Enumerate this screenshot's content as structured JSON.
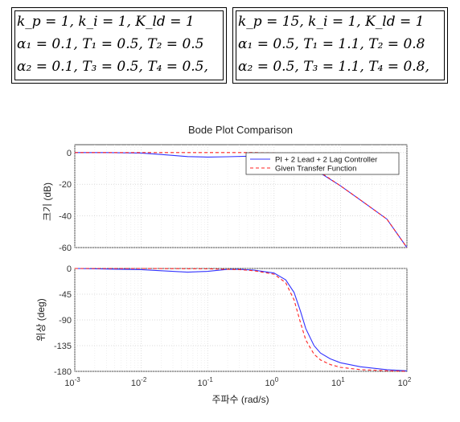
{
  "param_boxes": [
    {
      "lines": [
        "k_p = 1, k_i = 1, K_ld = 1",
        "α₁ = 0.1, T₁ = 0.5, T₂ = 0.5",
        "α₂ = 0.1, T₃ = 0.5, T₄ = 0.5,"
      ]
    },
    {
      "lines": [
        "k_p = 15, k_i = 1, K_ld = 1",
        "α₁ = 0.5, T₁ = 1.1, T₂ = 0.8",
        "α₂ = 0.5, T₃ = 1.1, T₄ = 0.8,"
      ]
    }
  ],
  "chart_data": [
    {
      "type": "line",
      "title": "Bode Plot Comparison",
      "xlabel": "",
      "ylabel": "크기 (dB)",
      "xscale": "log",
      "xlim": [
        0.001,
        100
      ],
      "ylim": [
        -60,
        5
      ],
      "yticks": [
        0,
        -20,
        -40,
        -60
      ],
      "grid": true,
      "legend_placement": "top-right",
      "series": [
        {
          "name": "PI + 2 Lead + 2 Lag Controller",
          "color": "#3333ff",
          "style": "solid",
          "x": [
            0.001,
            0.003,
            0.01,
            0.02,
            0.05,
            0.1,
            0.2,
            0.5,
            1,
            2,
            3,
            5,
            10,
            20,
            50,
            100
          ],
          "y": [
            0,
            0,
            -0.3,
            -1.2,
            -2.5,
            -2.8,
            -2.6,
            -2.2,
            -2.5,
            -4.5,
            -7.5,
            -13,
            -21,
            -30,
            -42,
            -60
          ]
        },
        {
          "name": "Given Transfer Function",
          "color": "#ff2222",
          "style": "dashed",
          "x": [
            0.001,
            0.01,
            0.1,
            0.5,
            1,
            2,
            3,
            5,
            10,
            20,
            50,
            100
          ],
          "y": [
            0,
            0,
            0,
            0,
            -0.3,
            -2.5,
            -6.5,
            -12.5,
            -21,
            -30,
            -42,
            -60
          ]
        }
      ]
    },
    {
      "type": "line",
      "title": "",
      "xlabel": "주파수 (rad/s)",
      "ylabel": "위상 (deg)",
      "xscale": "log",
      "xlim": [
        0.001,
        100
      ],
      "ylim": [
        -180,
        0
      ],
      "xticks": [
        0.001,
        0.01,
        0.1,
        1,
        10,
        100
      ],
      "xtick_labels": [
        [
          "10",
          "-3"
        ],
        [
          "10",
          "-2"
        ],
        [
          "10",
          "-1"
        ],
        [
          "10",
          "0"
        ],
        [
          "10",
          "1"
        ],
        [
          "10",
          "2"
        ]
      ],
      "yticks": [
        0,
        -45,
        -90,
        -135,
        -180
      ],
      "grid": true,
      "series": [
        {
          "name": "PI + 2 Lead + 2 Lag Controller",
          "color": "#3333ff",
          "style": "solid",
          "x": [
            0.001,
            0.003,
            0.01,
            0.02,
            0.05,
            0.1,
            0.2,
            0.3,
            0.5,
            1,
            1.5,
            2,
            2.5,
            3,
            4,
            5,
            7,
            10,
            20,
            50,
            100
          ],
          "y": [
            0,
            -1,
            -2,
            -4,
            -6.5,
            -5,
            -1.5,
            -1.5,
            -3,
            -8,
            -20,
            -42,
            -75,
            -105,
            -135,
            -148,
            -158,
            -165,
            -172,
            -177,
            -179
          ]
        },
        {
          "name": "Given Transfer Function",
          "color": "#ff2222",
          "style": "dashed",
          "x": [
            0.001,
            0.01,
            0.1,
            0.3,
            0.5,
            1,
            1.5,
            2,
            2.5,
            3,
            4,
            5,
            7,
            10,
            20,
            50,
            100
          ],
          "y": [
            0,
            0,
            -0.5,
            -2,
            -4,
            -10,
            -25,
            -55,
            -95,
            -125,
            -150,
            -160,
            -168,
            -173,
            -177,
            -179,
            -180
          ]
        }
      ]
    }
  ]
}
